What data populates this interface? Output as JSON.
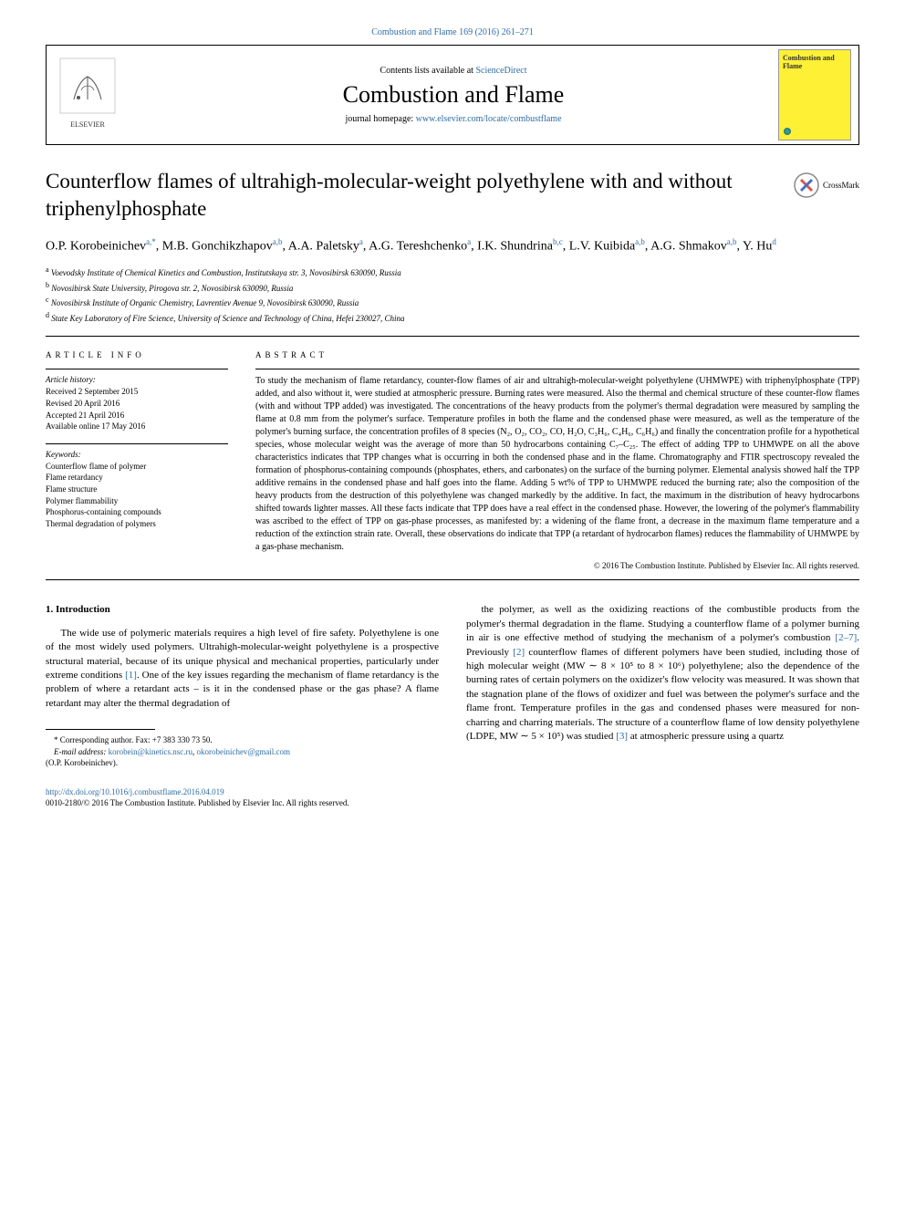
{
  "top_citation": "Combustion and Flame 169 (2016) 261–271",
  "header": {
    "contents_prefix": "Contents lists available at ",
    "contents_link": "ScienceDirect",
    "journal_name": "Combustion and Flame",
    "homepage_prefix": "journal homepage: ",
    "homepage_link": "www.elsevier.com/locate/combustflame",
    "elsevier_label": "ELSEVIER",
    "cover_title": "Combustion and Flame"
  },
  "crossmark_label": "CrossMark",
  "article": {
    "title": "Counterflow flames of ultrahigh-molecular-weight polyethylene with and without triphenylphosphate",
    "authors_html": "O.P. Korobeinichev<sup>a,*</sup>, M.B. Gonchikzhapov<sup>a,b</sup>, A.A. Paletsky<sup>a</sup>, A.G. Tereshchenko<sup>a</sup>, I.K. Shundrina<sup>b,c</sup>, L.V. Kuibida<sup>a,b</sup>, A.G. Shmakov<sup>a,b</sup>, Y. Hu<sup>d</sup>",
    "affiliations": [
      {
        "sup": "a",
        "text": "Voevodsky Institute of Chemical Kinetics and Combustion, Institutskaya str. 3, Novosibirsk 630090, Russia"
      },
      {
        "sup": "b",
        "text": "Novosibirsk State University, Pirogova str. 2, Novosibirsk 630090, Russia"
      },
      {
        "sup": "c",
        "text": "Novosibirsk Institute of Organic Chemistry, Lavrentiev Avenue 9, Novosibirsk 630090, Russia"
      },
      {
        "sup": "d",
        "text": "State Key Laboratory of Fire Science, University of Science and Technology of China, Hefei 230027, China"
      }
    ]
  },
  "info": {
    "heading": "ARTICLE INFO",
    "history_label": "Article history:",
    "history": [
      "Received 2 September 2015",
      "Revised 20 April 2016",
      "Accepted 21 April 2016",
      "Available online 17 May 2016"
    ],
    "keywords_label": "Keywords:",
    "keywords": [
      "Counterflow flame of polymer",
      "Flame retardancy",
      "Flame structure",
      "Polymer flammability",
      "Phosphorus-containing compounds",
      "Thermal degradation of polymers"
    ]
  },
  "abstract": {
    "heading": "ABSTRACT",
    "text": "To study the mechanism of flame retardancy, counter-flow flames of air and ultrahigh-molecular-weight polyethylene (UHMWPE) with triphenylphosphate (TPP) added, and also without it, were studied at atmospheric pressure. Burning rates were measured. Also the thermal and chemical structure of these counter-flow flames (with and without TPP added) was investigated. The concentrations of the heavy products from the polymer's thermal degradation were measured by sampling the flame at 0.8 mm from the polymer's surface. Temperature profiles in both the flame and the condensed phase were measured, as well as the temperature of the polymer's burning surface, the concentration profiles of 8 species (N₂, O₂, CO₂, CO, H₂O, C₃H₆, C₄H₆, C₆H₆) and finally the concentration profile for a hypothetical species, whose molecular weight was the average of more than 50 hydrocarbons containing C₇–C₂₅. The effect of adding TPP to UHMWPE on all the above characteristics indicates that TPP changes what is occurring in both the condensed phase and in the flame. Chromatography and FTIR spectroscopy revealed the formation of phosphorus-containing compounds (phosphates, ethers, and carbonates) on the surface of the burning polymer. Elemental analysis showed half the TPP additive remains in the condensed phase and half goes into the flame. Adding 5 wt% of TPP to UHMWPE reduced the burning rate; also the composition of the heavy products from the destruction of this polyethylene was changed markedly by the additive. In fact, the maximum in the distribution of heavy hydrocarbons shifted towards lighter masses. All these facts indicate that TPP does have a real effect in the condensed phase. However, the lowering of the polymer's flammability was ascribed to the effect of TPP on gas-phase processes, as manifested by: a widening of the flame front, a decrease in the maximum flame temperature and a reduction of the extinction strain rate. Overall, these observations do indicate that TPP (a retardant of hydrocarbon flames) reduces the flammability of UHMWPE by a gas-phase mechanism.",
    "copyright": "© 2016 The Combustion Institute. Published by Elsevier Inc. All rights reserved."
  },
  "body": {
    "section_heading": "1. Introduction",
    "col1_p1": "The wide use of polymeric materials requires a high level of fire safety. Polyethylene is one of the most widely used polymers. Ultrahigh-molecular-weight polyethylene is a prospective structural material, because of its unique physical and mechanical properties, particularly under extreme conditions [1]. One of the key issues regarding the mechanism of flame retardancy is the problem of where a retardant acts – is it in the condensed phase or the gas phase? A flame retardant may alter the thermal degradation of",
    "col2_p1": "the polymer, as well as the oxidizing reactions of the combustible products from the polymer's thermal degradation in the flame. Studying a counterflow flame of a polymer burning in air is one effective method of studying the mechanism of a polymer's combustion [2–7]. Previously [2] counterflow flames of different polymers have been studied, including those of high molecular weight (MW ∼ 8 × 10⁵ to 8 × 10⁶) polyethylene; also the dependence of the burning rates of certain polymers on the oxidizer's flow velocity was measured. It was shown that the stagnation plane of the flows of oxidizer and fuel was between the polymer's surface and the flame front. Temperature profiles in the gas and condensed phases were measured for non-charring and charring materials. The structure of a counterflow flame of low density polyethylene (LDPE, MW ∼ 5 × 10⁵) was studied [3] at atmospheric pressure using a quartz"
  },
  "footnotes": {
    "corresponding": "* Corresponding author. Fax: +7 383 330 73 50.",
    "email_label": "E-mail address: ",
    "email1": "korobein@kinetics.nsc.ru",
    "email2": "okorobeinichev@gmail.com",
    "email_author": "(O.P. Korobeinichev)."
  },
  "footer": {
    "doi": "http://dx.doi.org/10.1016/j.combustflame.2016.04.019",
    "issn_copyright": "0010-2180/© 2016 The Combustion Institute. Published by Elsevier Inc. All rights reserved."
  },
  "colors": {
    "link": "#2e6da4",
    "cover_bg": "#fef035",
    "text": "#000000",
    "bg": "#ffffff"
  }
}
